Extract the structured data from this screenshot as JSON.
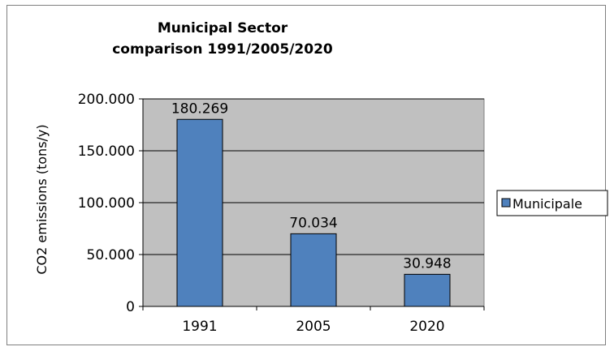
{
  "chart_data": {
    "type": "bar",
    "title_lines": [
      "Municipal Sector",
      "comparison  1991/2005/2020"
    ],
    "categories": [
      "1991",
      "2005",
      "2020"
    ],
    "series": [
      {
        "name": "Municipale",
        "values": [
          180269,
          70034,
          30948
        ]
      }
    ],
    "data_labels": [
      "180.269",
      "70.034",
      "30.948"
    ],
    "ylabel": "CO2 emissions (tons/y)",
    "xlabel": "",
    "ylim": [
      0,
      200000
    ],
    "y_ticks": [
      0,
      50000,
      100000,
      150000,
      200000
    ],
    "y_tick_labels": [
      "0",
      "50.000",
      "100.000",
      "150.000",
      "200.000"
    ],
    "grid": true,
    "legend_position": "right",
    "colors": {
      "bar": "#4f81bd",
      "bar_border": "#000000",
      "plot_background": "#c0c0c0",
      "gridline": "#000000"
    }
  }
}
